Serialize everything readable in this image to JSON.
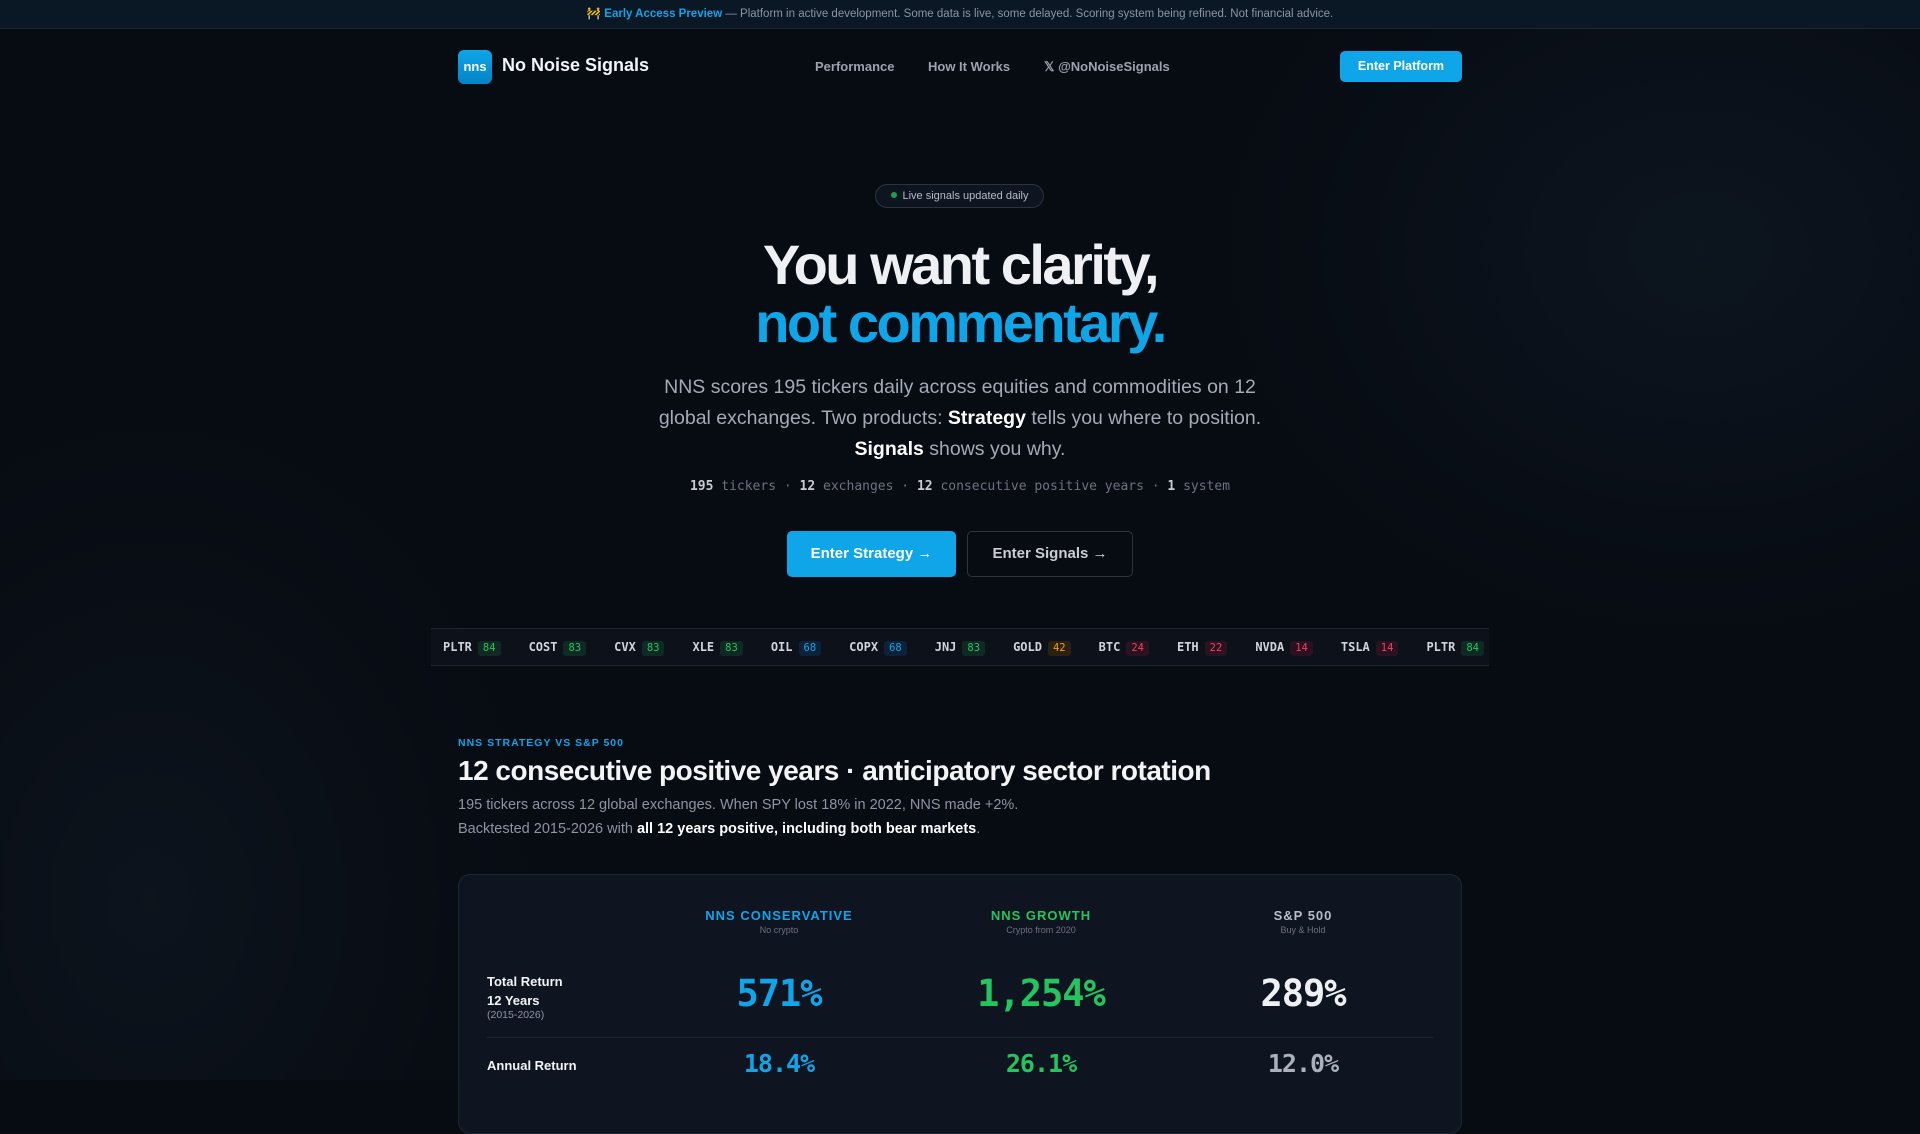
{
  "banner": {
    "icon": "construction-icon",
    "title": "Early Access Preview",
    "text": " — Platform in active development. Some data is live, some delayed. Scoring system being refined. Not financial advice."
  },
  "nav": {
    "logo": "nns",
    "brand": "No Noise Signals",
    "links": [
      "Performance",
      "How It Works",
      "𝕏 @NoNoiseSignals"
    ],
    "cta": "Enter Platform"
  },
  "hero": {
    "pill": "Live signals updated daily",
    "line1": "You want clarity,",
    "line2": "not commentary.",
    "para_a": "NNS scores 195 tickers daily across equities and commodities on 12 global exchanges. Two products: ",
    "strategy": "Strategy",
    "para_b": " tells you where to position. ",
    "signals": "Signals",
    "para_c": " shows you why.",
    "stats": [
      {
        "n": "195",
        "t": "tickers"
      },
      {
        "n": "12",
        "t": "exchanges"
      },
      {
        "n": "12",
        "t": "consecutive positive years"
      },
      {
        "n": "1",
        "t": "system"
      }
    ],
    "cta_strategy": "Enter Strategy →",
    "cta_signals": "Enter Signals →"
  },
  "ticker": [
    {
      "s": "PLTR",
      "v": "84",
      "c": "g"
    },
    {
      "s": "COST",
      "v": "83",
      "c": "g"
    },
    {
      "s": "CVX",
      "v": "83",
      "c": "g"
    },
    {
      "s": "XLE",
      "v": "83",
      "c": "g"
    },
    {
      "s": "OIL",
      "v": "68",
      "c": "b"
    },
    {
      "s": "COPX",
      "v": "68",
      "c": "b"
    },
    {
      "s": "JNJ",
      "v": "83",
      "c": "g"
    },
    {
      "s": "GOLD",
      "v": "42",
      "c": "y"
    },
    {
      "s": "BTC",
      "v": "24",
      "c": "r"
    },
    {
      "s": "ETH",
      "v": "22",
      "c": "r"
    },
    {
      "s": "NVDA",
      "v": "14",
      "c": "r"
    },
    {
      "s": "TSLA",
      "v": "14",
      "c": "r"
    },
    {
      "s": "PLTR",
      "v": "84",
      "c": "g"
    }
  ],
  "colors": {
    "accent": "#0ea5e9",
    "green": "#22c55e",
    "g": [
      "#0f2a22",
      "#22c55e"
    ],
    "b": [
      "#0c2238",
      "#0ea5e9"
    ],
    "y": [
      "#2a2110",
      "#f59e0b"
    ],
    "r": [
      "#2a1220",
      "#f43f5e"
    ]
  },
  "section": {
    "label": "NNS STRATEGY VS S&P 500",
    "title": "12 consecutive positive years · anticipatory sector rotation",
    "desc1": "195 tickers across 12 global exchanges. When SPY lost 18% in 2022, NNS made +2%.",
    "desc2a": "Backtested 2015-2026 with ",
    "desc2b": "all 12 years positive, including both bear markets",
    "desc2c": "."
  },
  "table": {
    "columns": [
      {
        "name": "NNS CONSERVATIVE",
        "sub": "No crypto"
      },
      {
        "name": "NNS GROWTH",
        "sub": "Crypto from 2020"
      },
      {
        "name": "S&P 500",
        "sub": "Buy & Hold"
      }
    ],
    "rows": [
      {
        "label": "Total Return",
        "label2": "12 Years",
        "label3": "(2015-2026)",
        "values": [
          "571%",
          "1,254%",
          "289%"
        ]
      },
      {
        "label": "Annual Return",
        "values": [
          "18.4%",
          "26.1%",
          "12.0%"
        ]
      }
    ]
  }
}
